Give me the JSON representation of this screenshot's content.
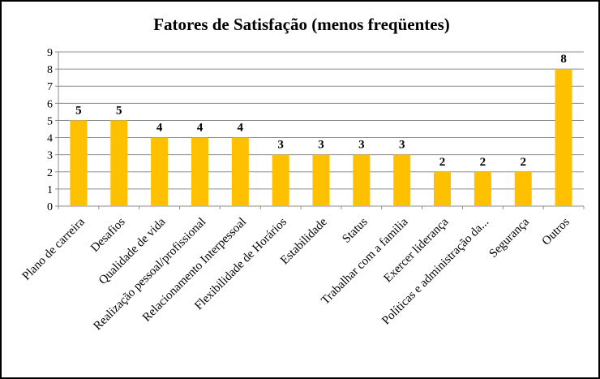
{
  "chart_data": {
    "type": "bar",
    "title": "Fatores de Satisfação (menos freqüentes)",
    "categories": [
      "Plano de carreira",
      "Desafios",
      "Qualidade de vida",
      "Realização pessoal/profissional",
      "Relacionamento Interpessoal",
      "Flexibilidade de Horários",
      "Estabilidade",
      "Status",
      "Trabalhar com a familia",
      "Exercer liderança",
      "Políticas e administração da...",
      "Segurança",
      "Outros"
    ],
    "values": [
      5,
      5,
      4,
      4,
      4,
      3,
      3,
      3,
      3,
      2,
      2,
      2,
      8
    ],
    "data_labels": [
      "5",
      "5",
      "4",
      "4",
      "4",
      "3",
      "3",
      "3",
      "3",
      "2",
      "2",
      "2",
      "8"
    ],
    "yticks": [
      "0",
      "1",
      "2",
      "3",
      "4",
      "5",
      "6",
      "7",
      "8",
      "9"
    ],
    "ylim": [
      0,
      9
    ],
    "xlabel": "",
    "ylabel": "",
    "grid": true,
    "legend": "none",
    "colors": {
      "bar": "#FFC000",
      "grid": "#8c8c8c",
      "axis": "#8c8c8c",
      "border": "#000000"
    }
  }
}
